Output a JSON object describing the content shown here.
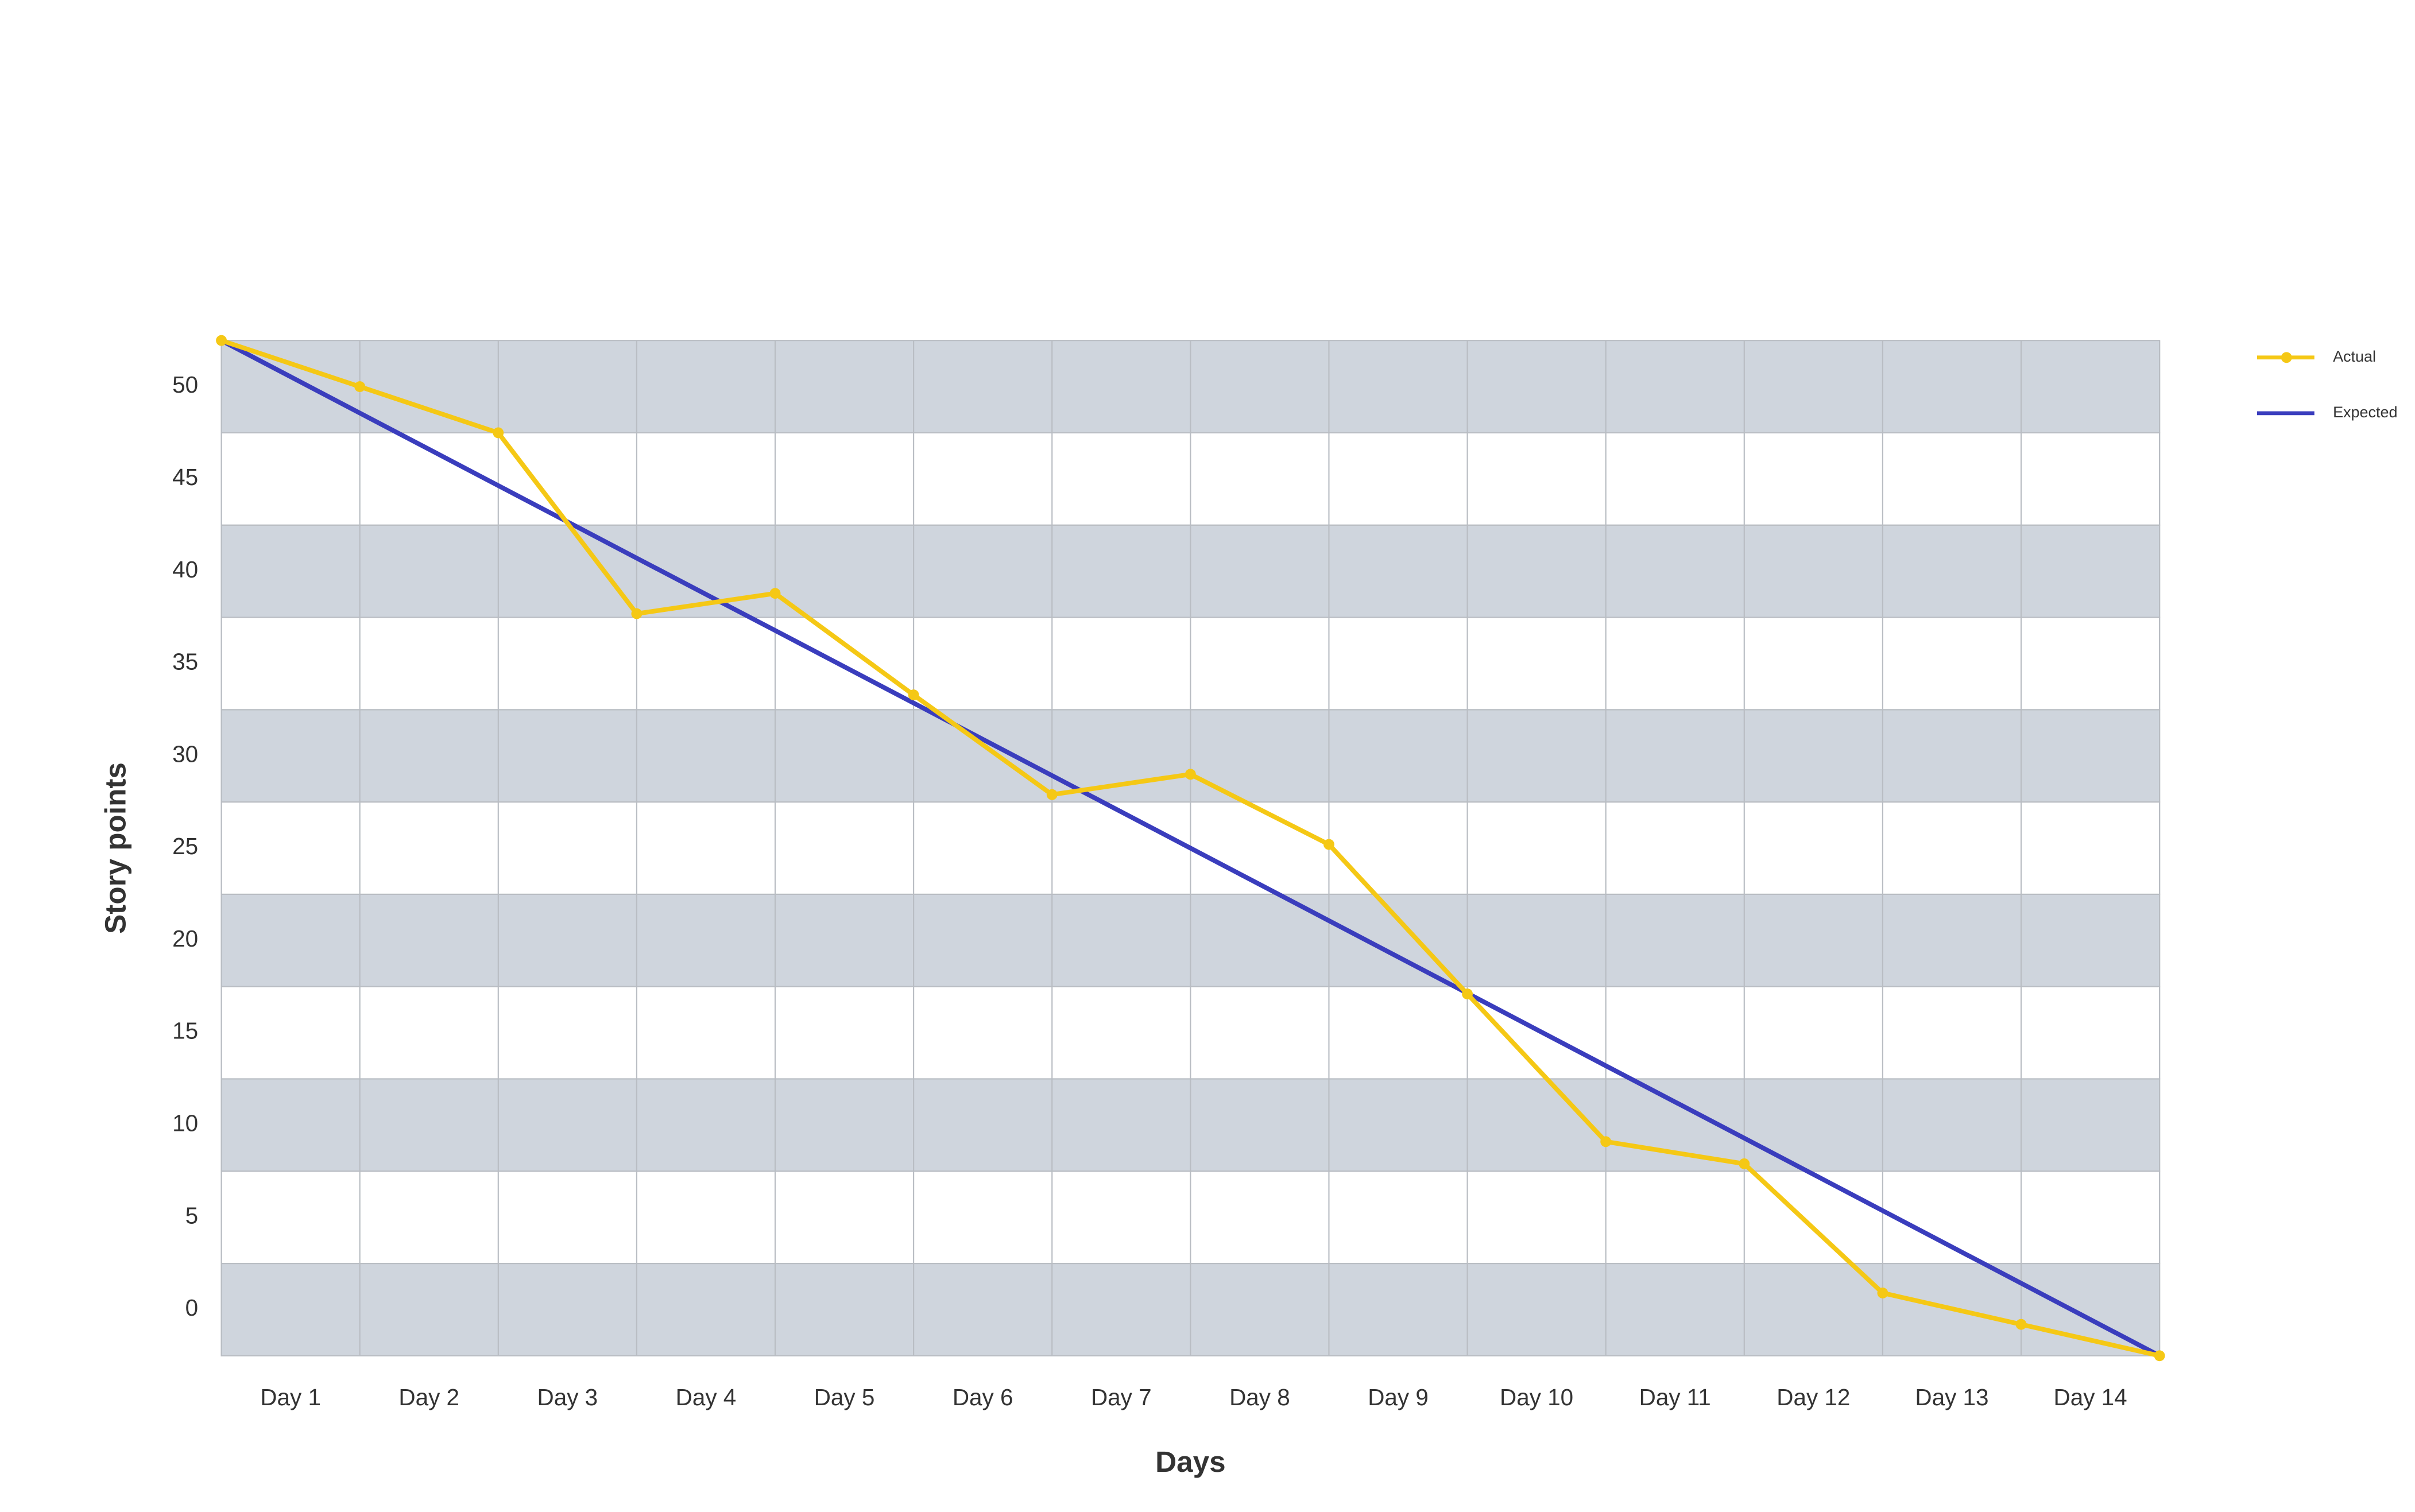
{
  "chart_data": {
    "type": "line",
    "x_label": "Days",
    "y_label": "Story points",
    "x": [
      0,
      1,
      2,
      3,
      4,
      5,
      6,
      7,
      8,
      9,
      10,
      11,
      12,
      13,
      14
    ],
    "xlim": [
      0,
      14
    ],
    "xticks": [
      {
        "value": 0.5,
        "label": "Day 1"
      },
      {
        "value": 1.5,
        "label": "Day 2"
      },
      {
        "value": 2.5,
        "label": "Day 3"
      },
      {
        "value": 3.5,
        "label": "Day 4"
      },
      {
        "value": 4.5,
        "label": "Day 5"
      },
      {
        "value": 5.5,
        "label": "Day 6"
      },
      {
        "value": 6.5,
        "label": "Day 7"
      },
      {
        "value": 7.5,
        "label": "Day 8"
      },
      {
        "value": 8.5,
        "label": "Day 9"
      },
      {
        "value": 9.5,
        "label": "Day 10"
      },
      {
        "value": 10.5,
        "label": "Day 11"
      },
      {
        "value": 11.5,
        "label": "Day 12"
      },
      {
        "value": 12.5,
        "label": "Day 13"
      },
      {
        "value": 13.5,
        "label": "Day 14"
      }
    ],
    "ylim": [
      -2.5,
      52.5
    ],
    "yticks": [
      0,
      5,
      10,
      15,
      20,
      25,
      30,
      35,
      40,
      45,
      50
    ],
    "grid": true,
    "legend": "right",
    "series": [
      {
        "name": "Actual",
        "color": "#f5c815",
        "markers": true,
        "values": [
          52.5,
          50,
          47.5,
          37.7,
          38.8,
          33.3,
          27.9,
          29,
          25.2,
          17.1,
          9.1,
          7.9,
          0.9,
          -0.8,
          -2.5
        ]
      },
      {
        "name": "Expected",
        "color": "#3a3dbd",
        "markers": false,
        "values": [
          52.5,
          48.57,
          44.64,
          40.71,
          36.79,
          32.86,
          28.93,
          25,
          21.07,
          17.14,
          13.21,
          9.29,
          5.36,
          1.43,
          -2.5
        ]
      }
    ]
  }
}
